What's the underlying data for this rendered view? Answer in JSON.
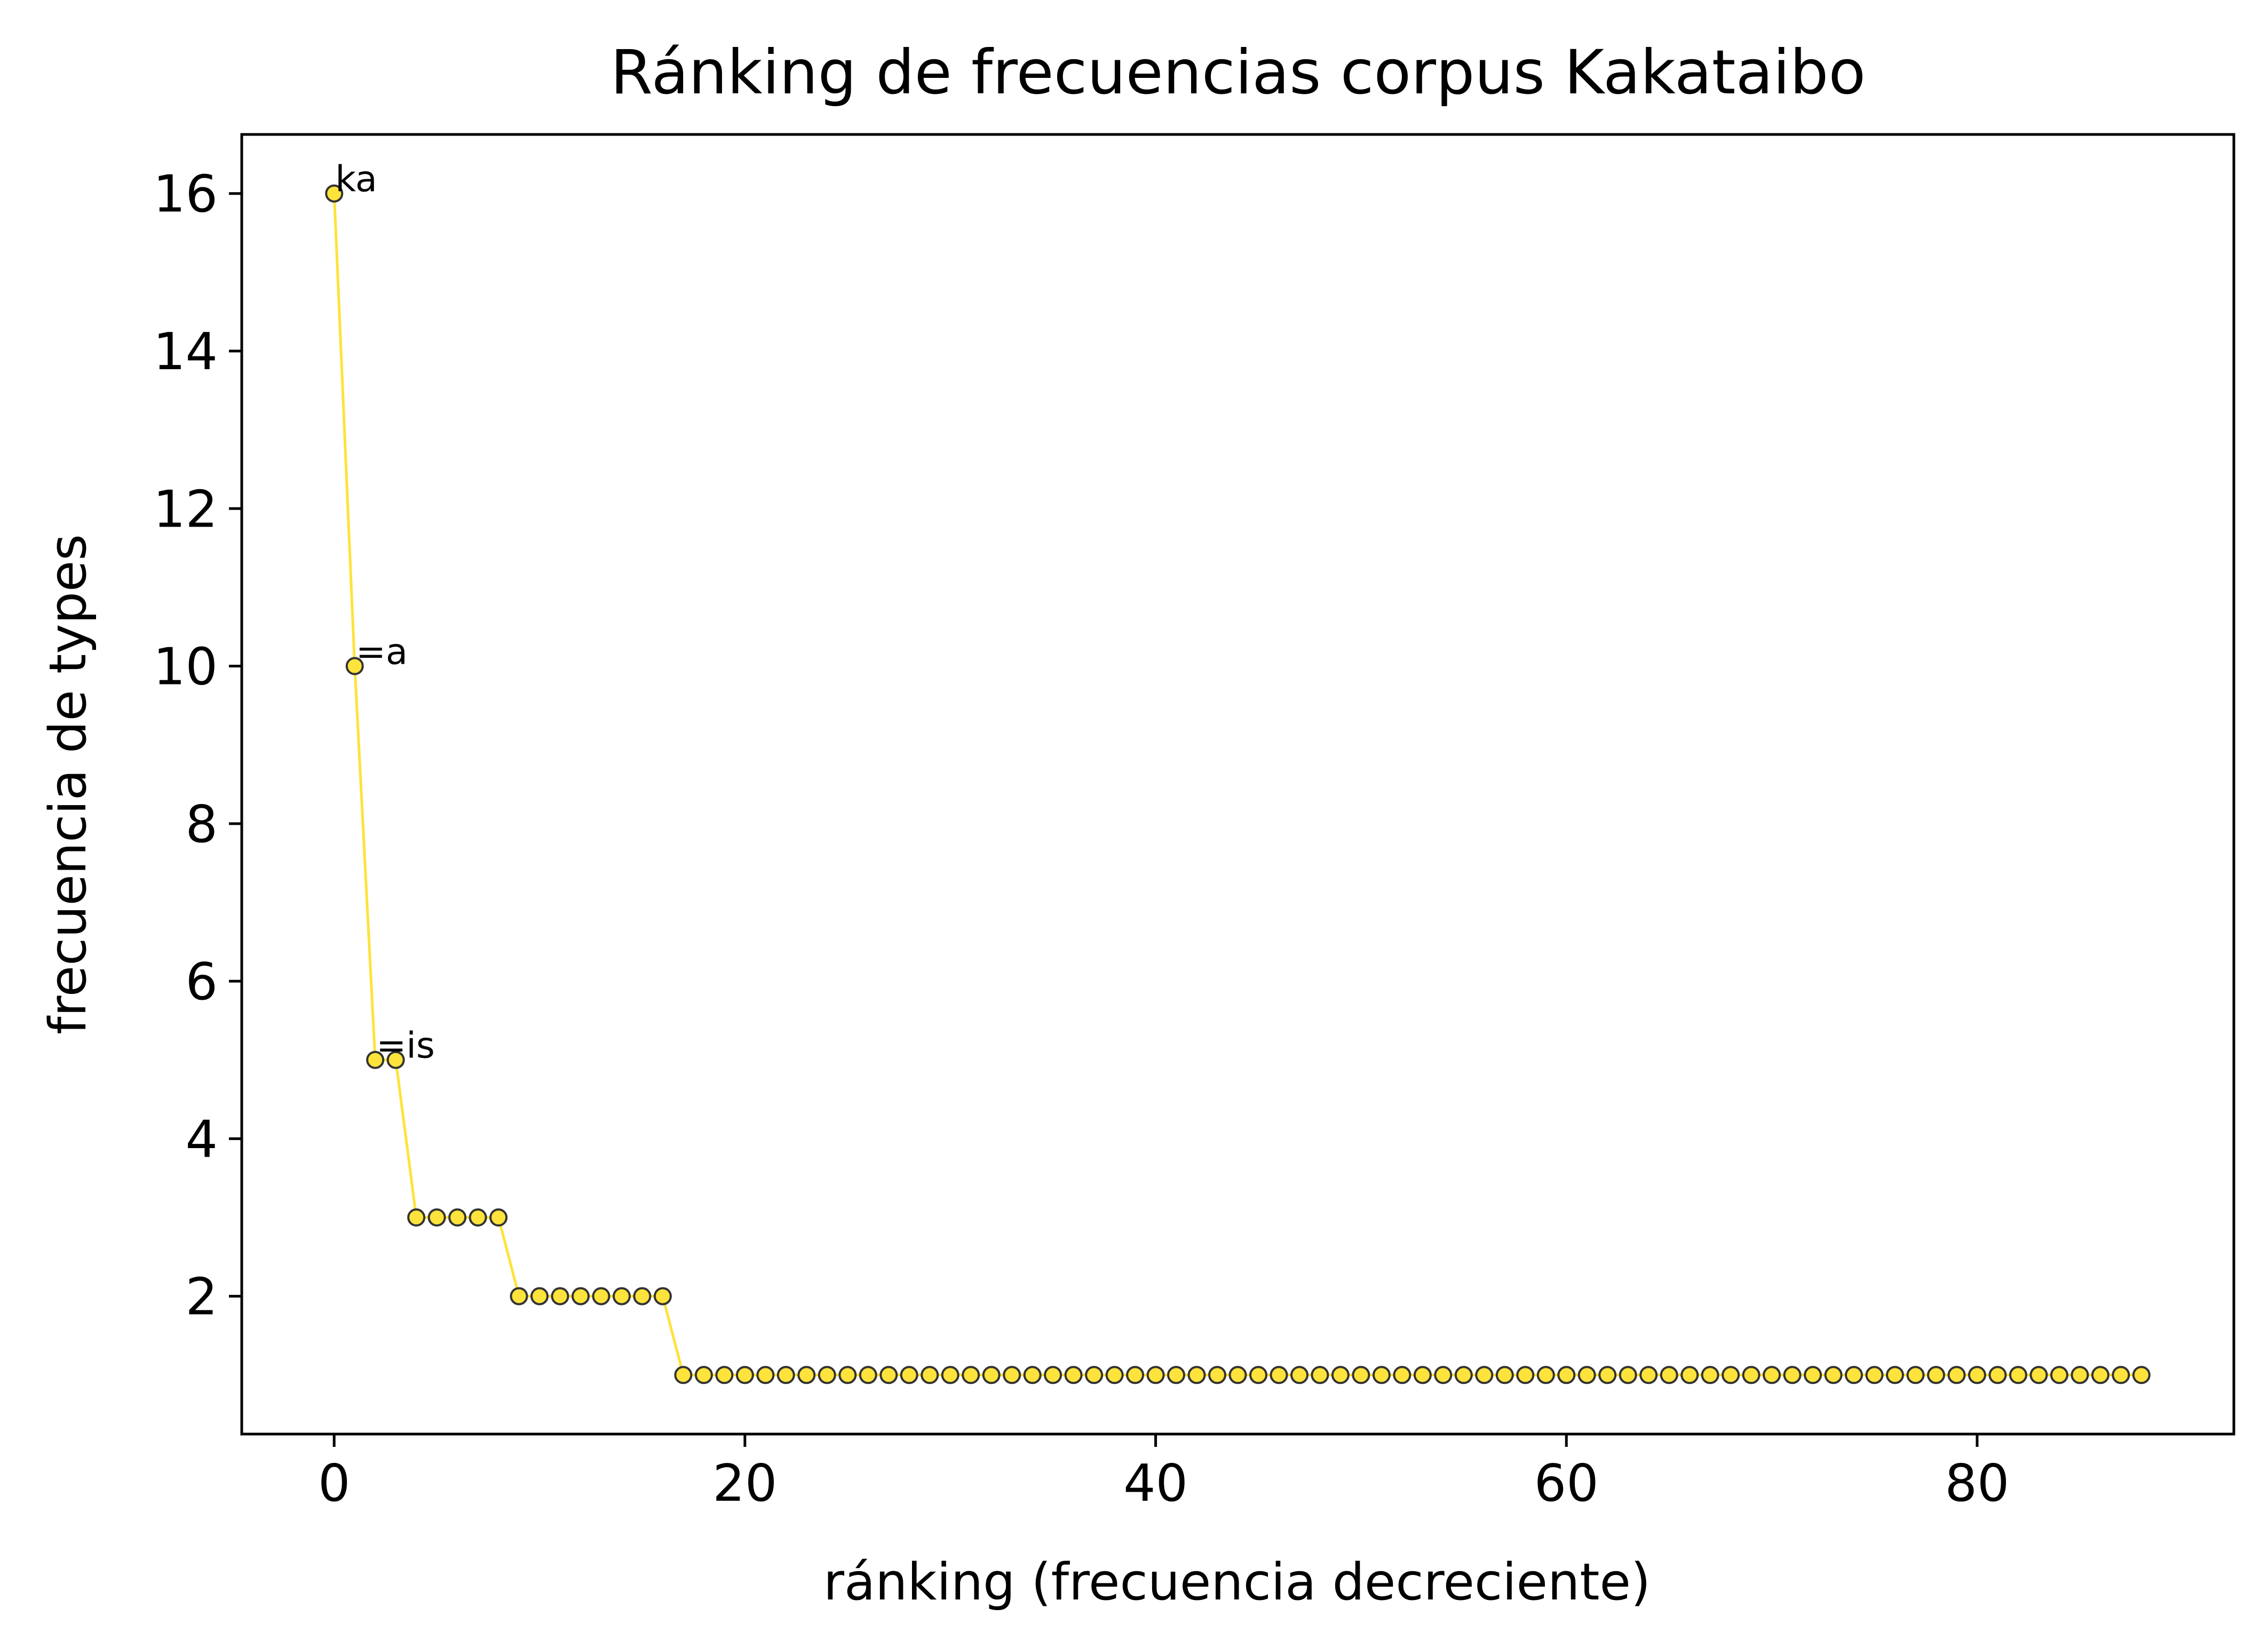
{
  "chart_data": {
    "type": "line",
    "title": "Ránking de frecuencias corpus Kakataibo",
    "xlabel": "ránking (frecuencia decreciente)",
    "ylabel": "frecuencia de types",
    "xlim": [
      -4.5,
      92.5
    ],
    "ylim": [
      0.25,
      16.75
    ],
    "xticks": [
      0,
      20,
      40,
      60,
      80
    ],
    "yticks": [
      2,
      4,
      6,
      8,
      10,
      12,
      14,
      16
    ],
    "grid": false,
    "line_color": "#fde33b",
    "marker_face": "#fde33b",
    "marker_edge": "#333333",
    "series": [
      {
        "values": [
          16,
          10,
          5,
          5,
          3,
          3,
          3,
          3,
          3,
          2,
          2,
          2,
          2,
          2,
          2,
          2,
          2,
          1,
          1,
          1,
          1,
          1,
          1,
          1,
          1,
          1,
          1,
          1,
          1,
          1,
          1,
          1,
          1,
          1,
          1,
          1,
          1,
          1,
          1,
          1,
          1,
          1,
          1,
          1,
          1,
          1,
          1,
          1,
          1,
          1,
          1,
          1,
          1,
          1,
          1,
          1,
          1,
          1,
          1,
          1,
          1,
          1,
          1,
          1,
          1,
          1,
          1,
          1,
          1,
          1,
          1,
          1,
          1,
          1,
          1,
          1,
          1,
          1,
          1,
          1,
          1,
          1,
          1,
          1,
          1,
          1,
          1,
          1,
          1
        ]
      }
    ],
    "annotations": [
      {
        "x": 0,
        "y": 16,
        "text": "ka"
      },
      {
        "x": 1,
        "y": 10,
        "text": "=a"
      },
      {
        "x": 2,
        "y": 5,
        "text": "=is"
      }
    ]
  }
}
